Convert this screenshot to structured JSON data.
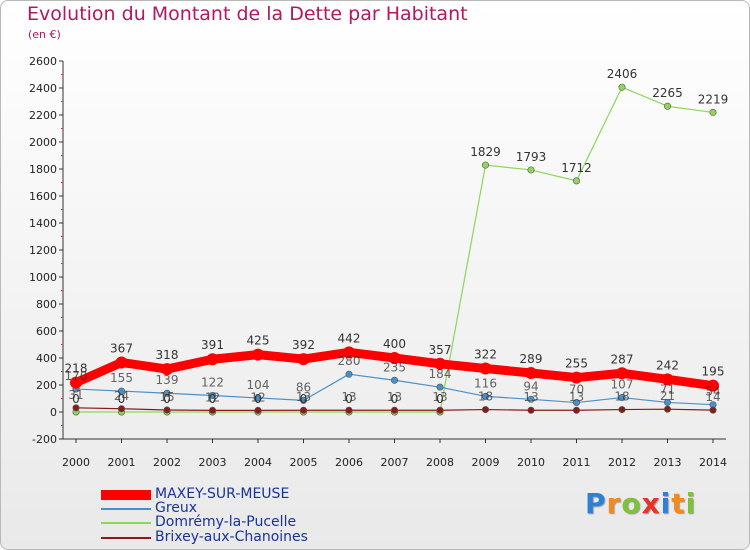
{
  "chart_data": {
    "type": "line",
    "title": "Evolution du Montant de la Dette par Habitant",
    "unit": "(en €)",
    "x": [
      "2000",
      "2001",
      "2002",
      "2003",
      "2004",
      "2005",
      "2006",
      "2007",
      "2008",
      "2009",
      "2010",
      "2011",
      "2012",
      "2013",
      "2014"
    ],
    "ylim": [
      -200,
      2600
    ],
    "yticks": [
      "-200",
      "0",
      "200",
      "400",
      "600",
      "800",
      "1000",
      "1200",
      "1400",
      "1600",
      "1800",
      "2000",
      "2200",
      "2400",
      "2600"
    ],
    "grid": false,
    "legend_position": "bottom-left",
    "series": [
      {
        "name": "MAXEY-SUR-MEUSE",
        "color": "#ff0000",
        "values": [
          218,
          367,
          318,
          391,
          425,
          392,
          442,
          400,
          357,
          322,
          289,
          255,
          287,
          242,
          195
        ],
        "labels": [
          "218",
          "367",
          "318",
          "391",
          "425",
          "392",
          "442",
          "400",
          "357",
          "322",
          "289",
          "255",
          "287",
          "242",
          "195"
        ]
      },
      {
        "name": "Greux",
        "color": "#4a90c8",
        "values": [
          170,
          155,
          139,
          122,
          104,
          86,
          280,
          235,
          184,
          116,
          94,
          70,
          107,
          71,
          54
        ],
        "labels": [
          "170",
          "155",
          "139",
          "122",
          "104",
          "86",
          "280",
          "235",
          "184",
          "116",
          "94",
          "70",
          "107",
          "71",
          "54"
        ]
      },
      {
        "name": "Domrémy-la-Pucelle",
        "color": "#8ed65a",
        "values": [
          0,
          0,
          0,
          0,
          0,
          0,
          0,
          0,
          0,
          1829,
          1793,
          1712,
          2406,
          2265,
          2219
        ],
        "labels": [
          "0",
          "0",
          "0",
          "0",
          "0",
          "0",
          "0",
          "0",
          "0",
          "1829",
          "1793",
          "1712",
          "2406",
          "2265",
          "2219"
        ]
      },
      {
        "name": "Brixey-aux-Chanoines",
        "color": "#8b1a1a",
        "values": [
          31,
          24,
          15,
          12,
          12,
          13,
          13,
          13,
          13,
          18,
          13,
          13,
          18,
          21,
          14
        ],
        "labels": [
          "31",
          "24",
          "15",
          "12",
          "12",
          "13",
          "13",
          "13",
          "13",
          "18",
          "13",
          "13",
          "18",
          "21",
          "14"
        ]
      }
    ]
  },
  "legend": {
    "items": [
      "MAXEY-SUR-MEUSE",
      "Greux",
      "Domrémy-la-Pucelle",
      "Brixey-aux-Chanoines"
    ]
  },
  "brand": {
    "letters": [
      "P",
      "r",
      "o",
      "x",
      "i",
      "t",
      "i"
    ],
    "colors": [
      "#2f7fd8",
      "#f28a1e",
      "#7ec23a",
      "#e8332a",
      "#2f7fd8",
      "#f28a1e",
      "#7ec23a"
    ]
  }
}
